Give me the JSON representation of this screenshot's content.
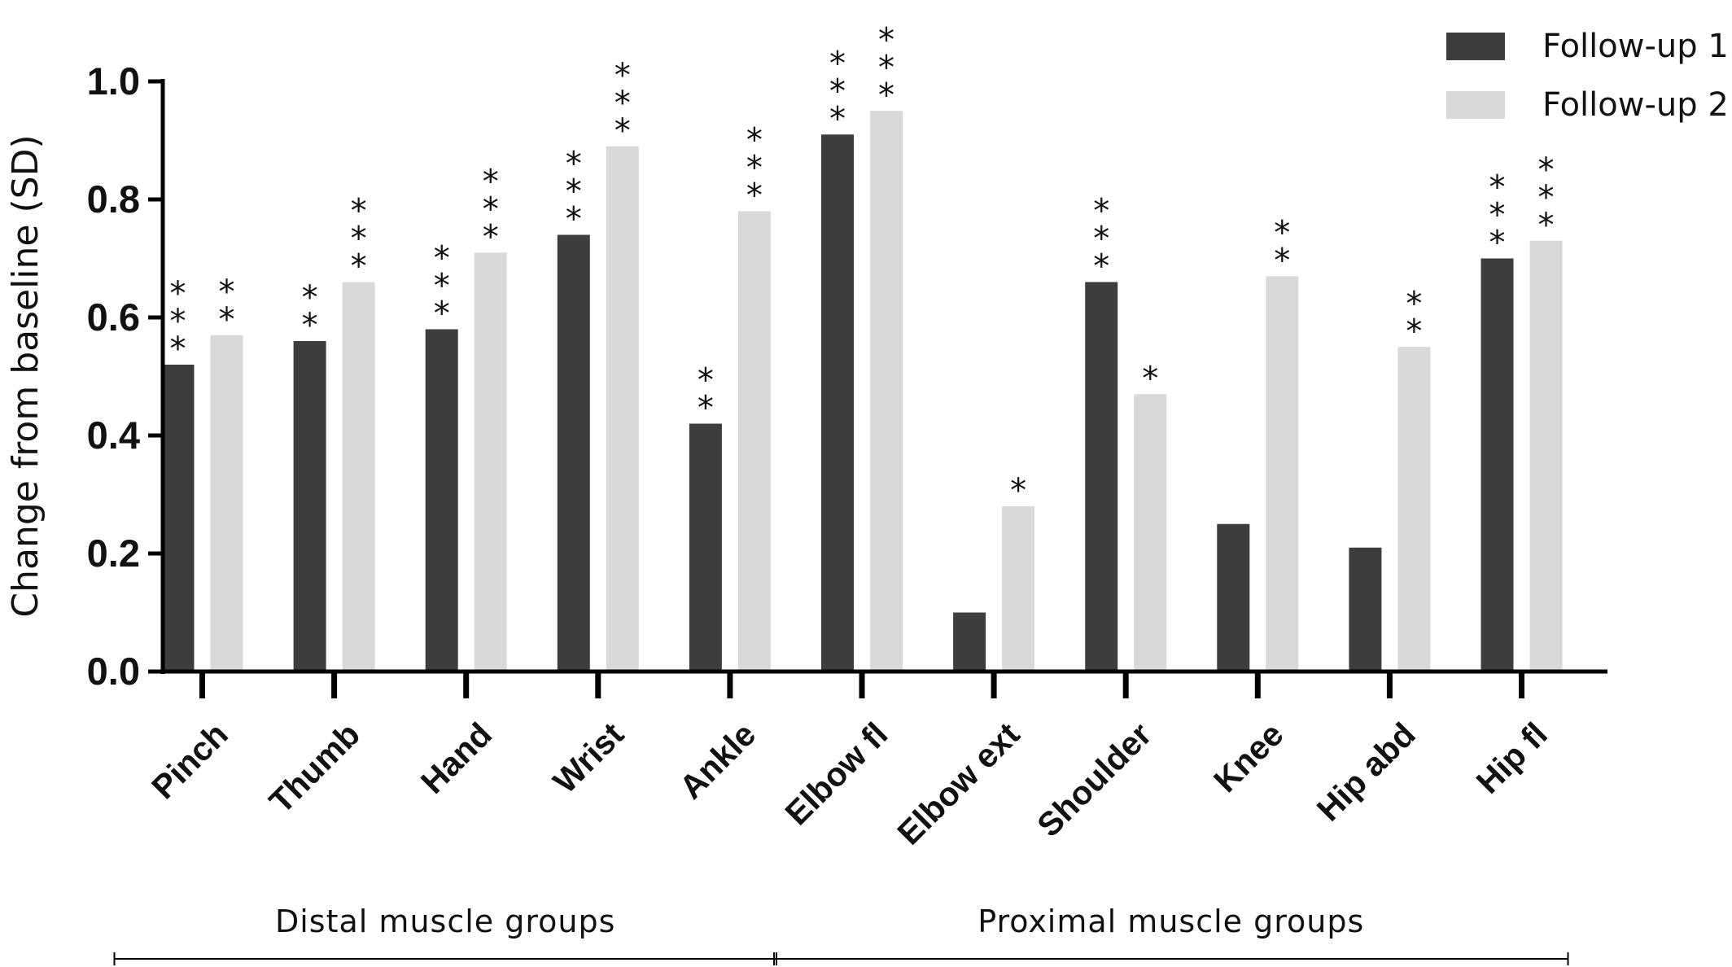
{
  "chart_data": {
    "type": "bar",
    "ylabel": "Change from baseline (SD)",
    "xlabel": "",
    "ylim": [
      0,
      1.0
    ],
    "yticks": [
      "0.0",
      "0.2",
      "0.4",
      "0.6",
      "0.8",
      "1.0"
    ],
    "categories": [
      "Pinch",
      "Thumb",
      "Hand",
      "Wrist",
      "Ankle",
      "Elbow fl",
      "Elbow ext",
      "Shoulder",
      "Knee",
      "Hip abd",
      "Hip fl"
    ],
    "series": [
      {
        "name": "Follow-up 1",
        "color": "#3d3d3d",
        "values": [
          0.52,
          0.56,
          0.58,
          0.74,
          0.42,
          0.91,
          0.1,
          0.66,
          0.25,
          0.21,
          0.7
        ],
        "significance": [
          "***",
          "**",
          "***",
          "***",
          "**",
          "***",
          "",
          "***",
          "",
          "",
          "***"
        ]
      },
      {
        "name": "Follow-up 2",
        "color": "#d9d9d9",
        "values": [
          0.57,
          0.66,
          0.71,
          0.89,
          0.78,
          0.95,
          0.28,
          0.47,
          0.67,
          0.55,
          0.73
        ],
        "significance": [
          "**",
          "***",
          "***",
          "***",
          "***",
          "***",
          "*",
          "*",
          "**",
          "**",
          "***"
        ]
      }
    ],
    "groups": [
      {
        "label": "Distal muscle groups",
        "from": 0,
        "to": 4
      },
      {
        "label": "Proximal muscle groups",
        "from": 5,
        "to": 10
      }
    ],
    "legend_position": "top-right",
    "grid": false
  }
}
